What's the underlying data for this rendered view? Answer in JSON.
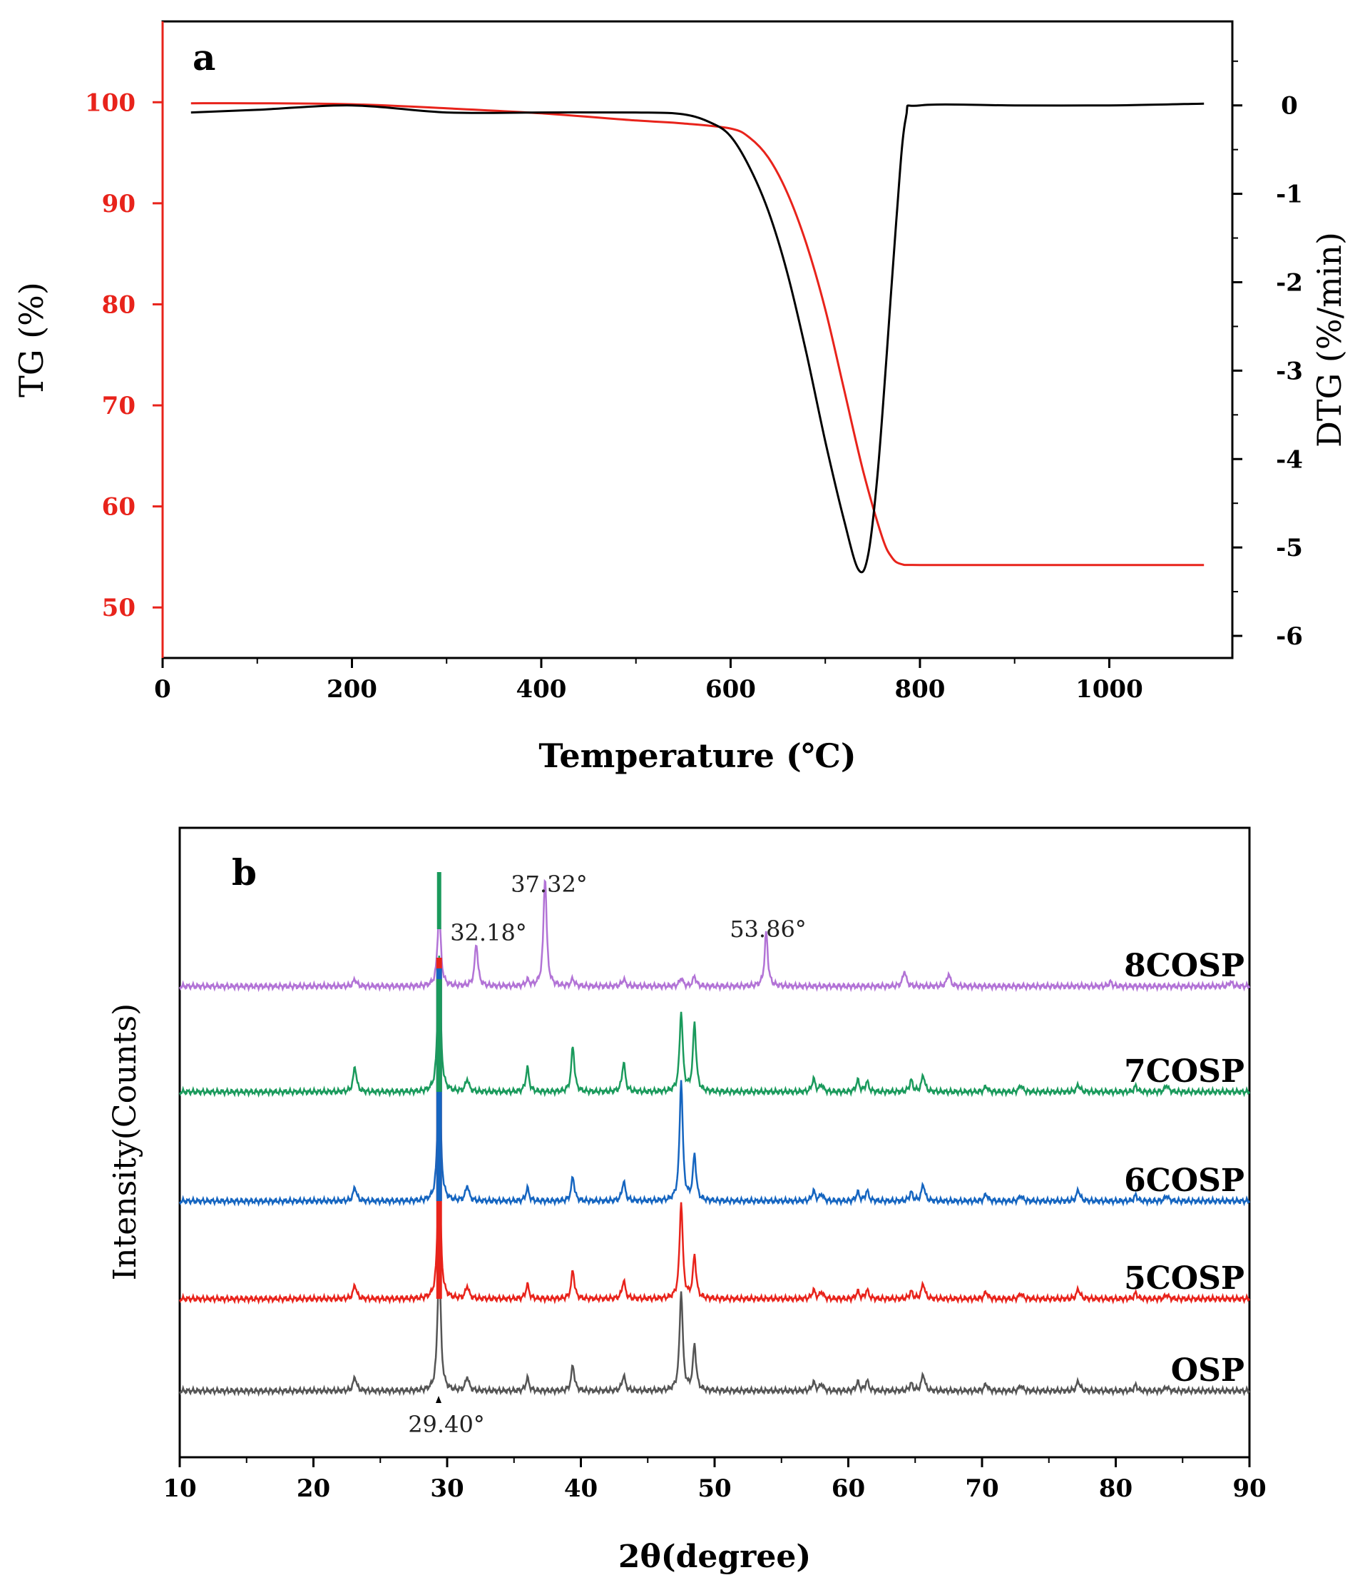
{
  "chart_data": [
    {
      "type": "line",
      "panel_label": "a",
      "xlabel": "Temperature (℃)",
      "ylabel_left": "TG (%)",
      "ylabel_right": "DTG (%/min)",
      "xlim": [
        0,
        1130
      ],
      "ylim_left": [
        45,
        108
      ],
      "ylim_right": [
        -6.25,
        0.95
      ],
      "x_ticks": [
        0,
        200,
        400,
        600,
        800,
        1000
      ],
      "y_ticks_left": [
        50,
        60,
        70,
        80,
        90,
        100
      ],
      "y_ticks_right": [
        -6,
        -5,
        -4,
        -3,
        -2,
        -1,
        0
      ],
      "y_tick_labels_right": [
        "-6",
        "-5",
        "-4",
        "-3",
        "-2",
        "-1",
        "0"
      ],
      "series": [
        {
          "name": "TG",
          "axis": "left",
          "color": "#e8231b",
          "x": [
            30,
            100,
            200,
            300,
            400,
            500,
            550,
            600,
            620,
            640,
            660,
            680,
            700,
            720,
            740,
            760,
            770,
            780,
            800,
            900,
            1000,
            1100
          ],
          "y": [
            99.9,
            99.9,
            99.8,
            99.4,
            98.9,
            98.2,
            97.9,
            97.4,
            96.5,
            94.5,
            91.0,
            86.0,
            79.5,
            71.5,
            63.5,
            57.0,
            55.0,
            54.3,
            54.2,
            54.2,
            54.2,
            54.2
          ]
        },
        {
          "name": "DTG",
          "axis": "right",
          "color": "#000000",
          "x": [
            30,
            100,
            200,
            300,
            400,
            500,
            550,
            580,
            600,
            620,
            640,
            660,
            680,
            700,
            720,
            735,
            745,
            755,
            765,
            775,
            785,
            800,
            900,
            1000,
            1100
          ],
          "y": [
            -0.08,
            -0.05,
            0.0,
            -0.08,
            -0.08,
            -0.08,
            -0.1,
            -0.2,
            -0.35,
            -0.7,
            -1.2,
            -1.9,
            -2.8,
            -3.8,
            -4.7,
            -5.25,
            -5.1,
            -4.2,
            -2.8,
            -1.3,
            -0.15,
            0.0,
            0.0,
            0.0,
            0.02
          ]
        }
      ]
    },
    {
      "type": "line",
      "panel_label": "b",
      "xlabel": "2θ(degree)",
      "ylabel": "Intensity(Counts)",
      "xlim": [
        10,
        90
      ],
      "x_ticks": [
        10,
        20,
        30,
        40,
        50,
        60,
        70,
        80,
        90
      ],
      "series": [
        {
          "name": "OSP",
          "color": "#555555",
          "offset": 0,
          "peaks": [
            [
              23.1,
              10
            ],
            [
              29.4,
              95
            ],
            [
              31.5,
              10
            ],
            [
              36.0,
              9
            ],
            [
              39.4,
              18
            ],
            [
              43.2,
              11
            ],
            [
              47.5,
              70
            ],
            [
              48.5,
              32
            ],
            [
              57.4,
              6
            ],
            [
              58.0,
              5
            ],
            [
              60.7,
              6
            ],
            [
              61.4,
              7
            ],
            [
              64.7,
              5
            ],
            [
              65.6,
              12
            ],
            [
              70.3,
              5
            ],
            [
              72.9,
              4
            ],
            [
              77.2,
              7
            ],
            [
              81.5,
              4
            ],
            [
              83.8,
              3
            ]
          ]
        },
        {
          "name": "5COSP",
          "color": "#e8231b",
          "offset": 1,
          "peaks": [
            [
              23.1,
              10
            ],
            [
              29.4,
              95
            ],
            [
              31.5,
              9
            ],
            [
              36.0,
              10
            ],
            [
              39.4,
              20
            ],
            [
              43.2,
              13
            ],
            [
              47.5,
              68
            ],
            [
              48.5,
              30
            ],
            [
              57.4,
              6
            ],
            [
              58.0,
              5
            ],
            [
              60.7,
              5
            ],
            [
              61.4,
              6
            ],
            [
              64.7,
              5
            ],
            [
              65.6,
              11
            ],
            [
              70.3,
              5
            ],
            [
              72.9,
              4
            ],
            [
              77.2,
              7
            ],
            [
              81.5,
              4
            ],
            [
              83.8,
              3
            ]
          ]
        },
        {
          "name": "6COSP",
          "color": "#1565c0",
          "offset": 2,
          "peaks": [
            [
              23.1,
              10
            ],
            [
              29.4,
              95
            ],
            [
              31.5,
              11
            ],
            [
              36.0,
              9
            ],
            [
              39.4,
              17
            ],
            [
              43.2,
              14
            ],
            [
              47.5,
              85
            ],
            [
              48.5,
              32
            ],
            [
              57.4,
              7
            ],
            [
              58.0,
              5
            ],
            [
              60.7,
              6
            ],
            [
              61.4,
              7
            ],
            [
              64.7,
              6
            ],
            [
              65.6,
              12
            ],
            [
              70.3,
              5
            ],
            [
              72.9,
              4
            ],
            [
              77.2,
              8
            ],
            [
              81.5,
              4
            ],
            [
              83.8,
              4
            ]
          ]
        },
        {
          "name": "7COSP",
          "color": "#1a9a5c",
          "offset": 3,
          "peaks": [
            [
              23.1,
              18
            ],
            [
              29.4,
              95
            ],
            [
              31.5,
              9
            ],
            [
              36.0,
              17
            ],
            [
              39.4,
              32
            ],
            [
              43.2,
              21
            ],
            [
              47.5,
              56
            ],
            [
              48.5,
              48
            ],
            [
              57.4,
              9
            ],
            [
              58.0,
              5
            ],
            [
              60.7,
              8
            ],
            [
              61.4,
              7
            ],
            [
              64.7,
              8
            ],
            [
              65.6,
              12
            ],
            [
              70.3,
              4
            ],
            [
              72.9,
              5
            ],
            [
              77.2,
              5
            ],
            [
              81.5,
              4
            ],
            [
              83.8,
              5
            ]
          ]
        },
        {
          "name": "8COSP",
          "color": "#b273d6",
          "offset": 4,
          "peaks": [
            [
              23.1,
              5
            ],
            [
              29.4,
              55
            ],
            [
              32.18,
              30
            ],
            [
              36.0,
              4
            ],
            [
              37.32,
              77
            ],
            [
              39.4,
              5
            ],
            [
              43.2,
              5
            ],
            [
              47.5,
              6
            ],
            [
              48.5,
              7
            ],
            [
              53.86,
              38
            ],
            [
              64.2,
              11
            ],
            [
              67.5,
              9
            ],
            [
              79.6,
              3
            ],
            [
              88.6,
              3
            ]
          ]
        }
      ],
      "annotations": [
        "29.40°",
        "32.18°",
        "37.32°",
        "53.86°"
      ],
      "peak_colors": [
        "#e8231b",
        "#1565c0",
        "#1a9a5c"
      ]
    }
  ]
}
